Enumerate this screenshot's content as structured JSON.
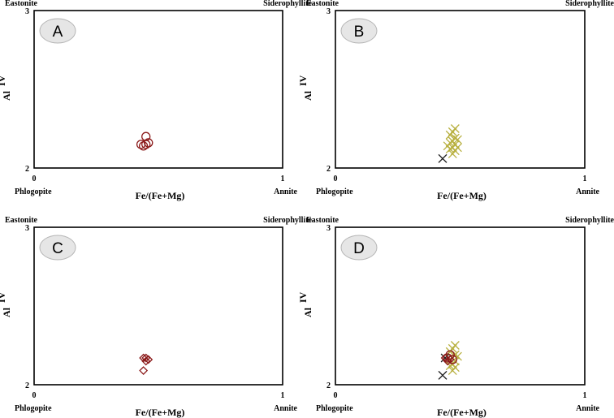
{
  "chart_data": [
    {
      "type": "scatter",
      "panel_label": "A",
      "xlabel": "Fe/(Fe+Mg)",
      "ylabel_main": "Al",
      "ylabel_sup": "IV",
      "xlim": [
        0,
        1
      ],
      "ylim": [
        2,
        3
      ],
      "x_tick_labels": [
        "0",
        "1"
      ],
      "y_tick_labels": [
        "2",
        "3"
      ],
      "corners": {
        "top_left": "Eastonite",
        "top_right": "Siderophyllite",
        "bottom_left": "Phlogopite",
        "bottom_right": "Annite"
      },
      "series": [
        {
          "marker": "circle",
          "color": "#8b1a1a",
          "points": [
            [
              0.45,
              2.2
            ],
            [
              0.43,
              2.15
            ],
            [
              0.44,
              2.14
            ],
            [
              0.46,
              2.16
            ],
            [
              0.45,
              2.15
            ]
          ]
        }
      ]
    },
    {
      "type": "scatter",
      "panel_label": "B",
      "xlabel": "Fe/(Fe+Mg)",
      "ylabel_main": "Al",
      "ylabel_sup": "IV",
      "xlim": [
        0,
        1
      ],
      "ylim": [
        2,
        3
      ],
      "x_tick_labels": [
        "0",
        "1"
      ],
      "y_tick_labels": [
        "2",
        "3"
      ],
      "corners": {
        "top_left": "Eastonite",
        "top_right": "Siderophyllite",
        "bottom_left": "Phlogopite",
        "bottom_right": "Annite"
      },
      "series": [
        {
          "marker": "x",
          "color": "#b8b040",
          "points": [
            [
              0.48,
              2.25
            ],
            [
              0.47,
              2.23
            ],
            [
              0.46,
              2.21
            ],
            [
              0.48,
              2.19
            ],
            [
              0.47,
              2.17
            ],
            [
              0.46,
              2.16
            ],
            [
              0.48,
              2.15
            ],
            [
              0.47,
              2.13
            ],
            [
              0.46,
              2.12
            ],
            [
              0.48,
              2.11
            ],
            [
              0.47,
              2.09
            ],
            [
              0.49,
              2.18
            ],
            [
              0.45,
              2.14
            ],
            [
              0.49,
              2.13
            ]
          ]
        },
        {
          "marker": "x",
          "color": "#222222",
          "points": [
            [
              0.43,
              2.06
            ]
          ]
        }
      ]
    },
    {
      "type": "scatter",
      "panel_label": "C",
      "xlabel": "Fe/(Fe+Mg)",
      "ylabel_main": "Al",
      "ylabel_sup": "IV",
      "xlim": [
        0,
        1
      ],
      "ylim": [
        2,
        3
      ],
      "x_tick_labels": [
        "0",
        "1"
      ],
      "y_tick_labels": [
        "2",
        "3"
      ],
      "corners": {
        "top_left": "Eastonite",
        "top_right": "Siderophyllite",
        "bottom_left": "Phlogopite",
        "bottom_right": "Annite"
      },
      "series": [
        {
          "marker": "diamond",
          "color": "#8b1a1a",
          "points": [
            [
              0.44,
              2.17
            ],
            [
              0.45,
              2.17
            ],
            [
              0.46,
              2.16
            ],
            [
              0.45,
              2.15
            ],
            [
              0.44,
              2.09
            ]
          ]
        }
      ]
    },
    {
      "type": "scatter",
      "panel_label": "D",
      "xlabel": "Fe/(Fe+Mg)",
      "ylabel_main": "Al",
      "ylabel_sup": "IV",
      "xlim": [
        0,
        1
      ],
      "ylim": [
        2,
        3
      ],
      "x_tick_labels": [
        "0",
        "1"
      ],
      "y_tick_labels": [
        "2",
        "3"
      ],
      "corners": {
        "top_left": "Eastonite",
        "top_right": "Siderophyllite",
        "bottom_left": "Phlogopite",
        "bottom_right": "Annite"
      },
      "series": [
        {
          "marker": "x",
          "color": "#b8b040",
          "points": [
            [
              0.48,
              2.25
            ],
            [
              0.47,
              2.23
            ],
            [
              0.46,
              2.21
            ],
            [
              0.48,
              2.19
            ],
            [
              0.47,
              2.17
            ],
            [
              0.46,
              2.16
            ],
            [
              0.48,
              2.15
            ],
            [
              0.47,
              2.13
            ],
            [
              0.46,
              2.12
            ],
            [
              0.48,
              2.11
            ],
            [
              0.47,
              2.09
            ],
            [
              0.49,
              2.18
            ]
          ]
        },
        {
          "marker": "x",
          "color": "#222222",
          "points": [
            [
              0.43,
              2.06
            ],
            [
              0.44,
              2.17
            ]
          ]
        },
        {
          "marker": "circle",
          "color": "#8b1a1a",
          "points": [
            [
              0.46,
              2.19
            ],
            [
              0.45,
              2.17
            ],
            [
              0.47,
              2.16
            ]
          ]
        },
        {
          "marker": "diamond",
          "color": "#8b1a1a",
          "points": [
            [
              0.44,
              2.17
            ],
            [
              0.46,
              2.16
            ],
            [
              0.45,
              2.15
            ]
          ]
        }
      ]
    }
  ]
}
